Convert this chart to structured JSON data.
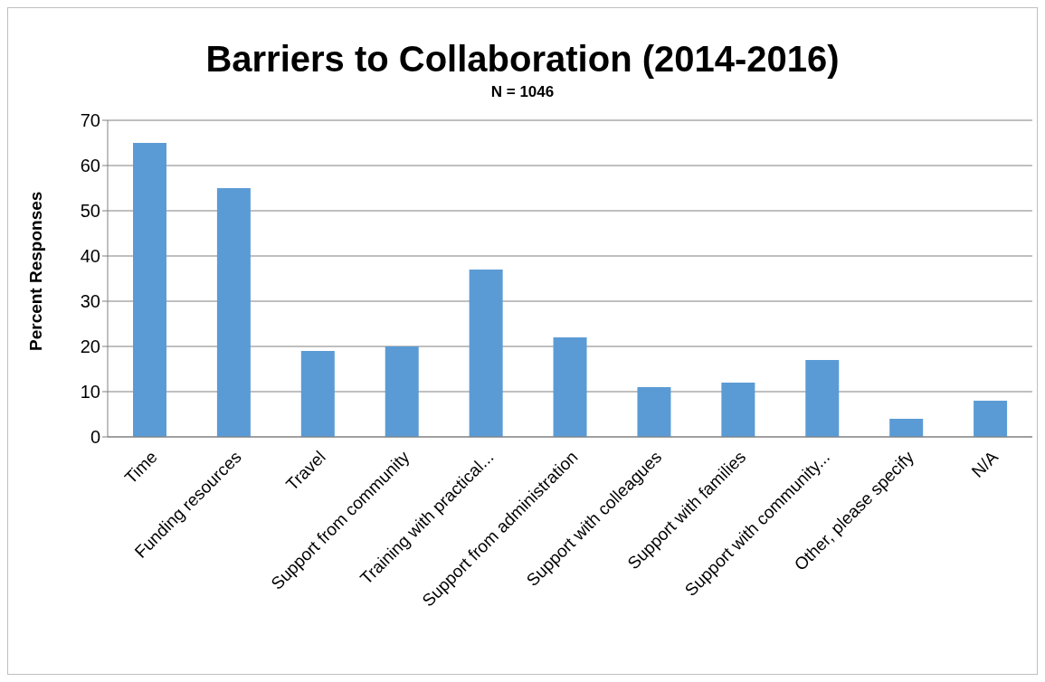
{
  "chart_data": {
    "type": "bar",
    "title": "Barriers to Collaboration (2014-2016)",
    "subtitle": "N = 1046",
    "ylabel": "Percent Responses",
    "categories": [
      "Time",
      "Funding resources",
      "Travel",
      "Support from community",
      "Training with practical...",
      "Support from administration",
      "Support with colleagues",
      "Support with families",
      "Support with community...",
      "Other, please specify",
      "N/A"
    ],
    "values": [
      65,
      55,
      19,
      20,
      37,
      22,
      11,
      12,
      17,
      4,
      8
    ],
    "color": "#5b9bd5",
    "ylim": [
      0,
      70
    ],
    "yticks": [
      0,
      10,
      20,
      30,
      40,
      50,
      60,
      70
    ],
    "grid": "y"
  }
}
